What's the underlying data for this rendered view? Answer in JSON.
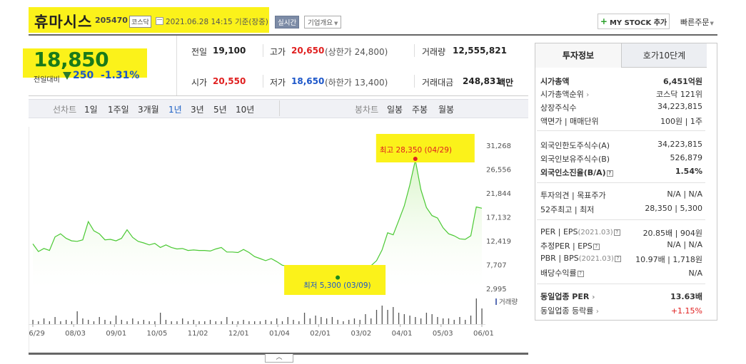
{
  "header": {
    "name": "휴마시스",
    "code": "205470",
    "market": "코스닥",
    "datetime": "2021.06.28 14:15 기준(장중)",
    "realtime": "실시간",
    "company_info": "기업개요",
    "mystock": "MY STOCK 추가",
    "quick_order": "빠른주문"
  },
  "price": {
    "current": "18,850",
    "change_label": "전일대비",
    "change": "250",
    "change_pct": "-1.31%"
  },
  "quote": {
    "prev_close_label": "전일",
    "prev_close": "19,100",
    "high_label": "고가",
    "high": "20,650",
    "upper_limit": "(상한가 24,800)",
    "volume_label": "거래량",
    "volume": "12,555,821",
    "open_label": "시가",
    "open": "20,550",
    "low_label": "저가",
    "low": "18,650",
    "lower_limit": "(하한가 13,400)",
    "amount_label": "거래대금",
    "amount": "248,831",
    "amount_unit": "백만"
  },
  "toolbar": {
    "line_label": "선차트",
    "periods": [
      "1일",
      "1주일",
      "3개월",
      "1년",
      "3년",
      "5년",
      "10년"
    ],
    "selected_period": "1년",
    "candle_label": "봉차트",
    "candles": [
      "일봉",
      "주봉",
      "월봉"
    ]
  },
  "chart_data": {
    "type": "area",
    "title": "",
    "y_ticks": [
      "31,268",
      "26,556",
      "21,844",
      "17,132",
      "12,419",
      "7,707",
      "2,995"
    ],
    "ylim": [
      2995,
      31268
    ],
    "x_ticks": [
      "06/29",
      "08/03",
      "09/01",
      "10/05",
      "11/02",
      "12/01",
      "01/04",
      "02/01",
      "03/02",
      "04/01",
      "05/03",
      "06/01"
    ],
    "high_annotation": "최고 28,350 (04/29)",
    "low_annotation": "최저 5,300 (03/09)",
    "volume_legend": "거래량",
    "series": [
      {
        "values": [
          11800,
          10300,
          10900,
          10500,
          13200,
          13800,
          12900,
          12400,
          12300,
          12600,
          16200,
          14400,
          13800,
          12600,
          12700,
          12400,
          12900,
          14600,
          13100,
          12300,
          12000,
          11600,
          11900,
          11100,
          11600,
          11100,
          10800,
          10900,
          10500,
          10600,
          10500,
          10500,
          10400,
          10800,
          11100,
          10200,
          10200,
          10100,
          10700,
          10100,
          9300,
          8900,
          8500,
          8900,
          8300,
          7600,
          7400,
          7100,
          7000,
          6800,
          6900,
          6500,
          6300,
          5900,
          5600,
          5300,
          5400,
          5800,
          5600,
          6300,
          6400,
          7500,
          8500,
          10600,
          14000,
          13600,
          16400,
          19300,
          23400,
          28350,
          22500,
          19000,
          17400,
          16900,
          15000,
          13800,
          13400,
          12800,
          12700,
          13400,
          19100,
          18850
        ]
      }
    ],
    "volume": [
      3,
      2,
      4,
      2,
      5,
      2,
      3,
      2,
      9,
      4,
      3,
      2,
      5,
      3,
      2,
      6,
      3,
      2,
      4,
      2,
      3,
      2,
      2,
      8,
      3,
      2,
      2,
      4,
      2,
      3,
      2,
      2,
      3,
      2,
      2,
      5,
      2,
      2,
      3,
      2,
      2,
      2,
      3,
      2,
      4,
      2,
      5,
      3,
      2,
      8,
      4,
      6,
      5,
      4,
      5,
      3,
      2,
      3,
      4,
      3,
      7,
      4,
      10,
      13,
      10,
      12,
      8,
      7,
      6,
      5,
      4,
      8,
      7,
      5,
      4,
      4,
      3,
      5,
      3,
      6,
      18,
      11
    ]
  },
  "invest": {
    "tab_active": "투자정보",
    "tab_other": "호가10단계",
    "market_cap_label": "시가총액",
    "market_cap": "6,451억원",
    "rank_label": "시가총액순위",
    "rank": "코스닥 121위",
    "shares_label": "상장주식수",
    "shares": "34,223,815",
    "par_label": "액면가",
    "lot_label": "매매단위",
    "par_lot": "100원 | 1주",
    "foreign_limit_label": "외국인한도주식수(A)",
    "foreign_limit": "34,223,815",
    "foreign_hold_label": "외국인보유주식수(B)",
    "foreign_hold": "526,879",
    "foreign_ratio_label": "외국인소진율(B/A)",
    "foreign_ratio": "1.54%",
    "opinion_label": "투자의견",
    "target_label": "목표주가",
    "opinion_target": "N/A | N/A",
    "w52_label": "52주최고",
    "w52_low_label": "최저",
    "w52": "28,350 | 5,300",
    "per_label": "PER",
    "eps_label": "EPS",
    "per_year": "(2021.03)",
    "per_eps": "20.85배 | 904원",
    "est_per_label": "추정PER",
    "est_eps_label": "EPS",
    "est_per_eps": "N/A | N/A",
    "pbr_label": "PBR",
    "bps_label": "BPS",
    "pbr_year": "(2021.03)",
    "pbr_bps": "10.97배 | 1,718원",
    "div_label": "배당수익률",
    "div": "N/A",
    "peer_per_label": "동일업종 PER",
    "peer_per": "13.63배",
    "peer_rate_label": "동일업종 등락률",
    "peer_rate": "+1.15%"
  },
  "colors": {
    "highlight": "#fbf21a",
    "up_red": "#e02020",
    "down_blue": "#1c56c9",
    "chart_green": "#4bc934",
    "chart_fill": "#d9f5c8"
  }
}
